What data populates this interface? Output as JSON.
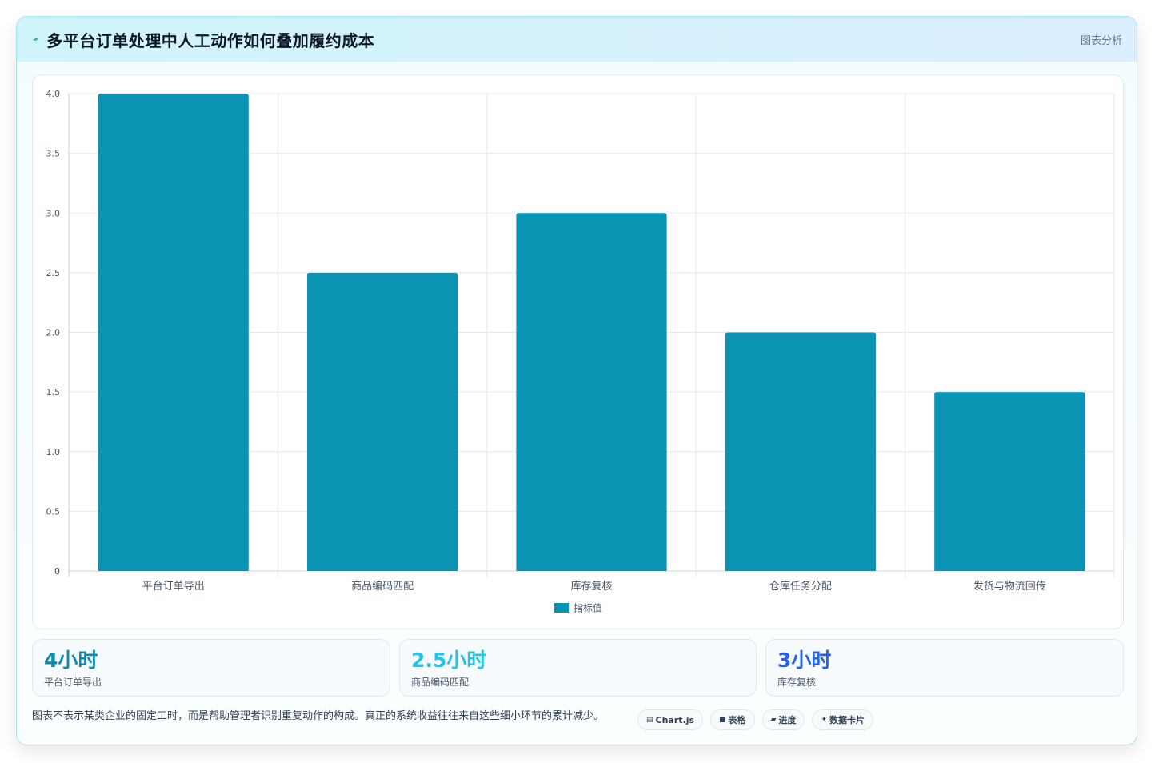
{
  "header": {
    "icon": "chart-line-icon",
    "title": "多平台订单处理中人工动作如何叠加履约成本",
    "tag": "图表分析"
  },
  "chart_data": {
    "type": "bar",
    "categories": [
      "平台订单导出",
      "商品编码匹配",
      "库存复核",
      "仓库任务分配",
      "发货与物流回传"
    ],
    "series": [
      {
        "name": "指标值",
        "values": [
          4,
          2.5,
          3,
          2,
          1.5
        ],
        "color": "#0a93b3"
      }
    ],
    "ylim": [
      0,
      4
    ],
    "yticks": [
      "0",
      "0.5",
      "1.0",
      "1.5",
      "2.0",
      "2.5",
      "3.0",
      "3.5",
      "4.0"
    ],
    "legend": "bottom",
    "grid": true
  },
  "kpis": [
    {
      "value": "4小时",
      "label": "平台订单导出",
      "color": "#0b8eae"
    },
    {
      "value": "2.5小时",
      "label": "商品编码匹配",
      "color": "#22c5e5"
    },
    {
      "value": "3小时",
      "label": "库存复核",
      "color": "#2563eb"
    }
  ],
  "footnote": "图表不表示某类企业的固定工时，而是帮助管理者识别重复动作的构成。真正的系统收益往往来自这些细小环节的累计减少。",
  "chips": [
    {
      "icon": "chart-icon",
      "glyph": "▤",
      "label": "Chart.js"
    },
    {
      "icon": "table-icon",
      "glyph": "■",
      "label": "表格"
    },
    {
      "icon": "progress-icon",
      "glyph": "▰",
      "label": "进度"
    },
    {
      "icon": "sparkle-icon",
      "glyph": "✦",
      "label": "数据卡片"
    }
  ]
}
